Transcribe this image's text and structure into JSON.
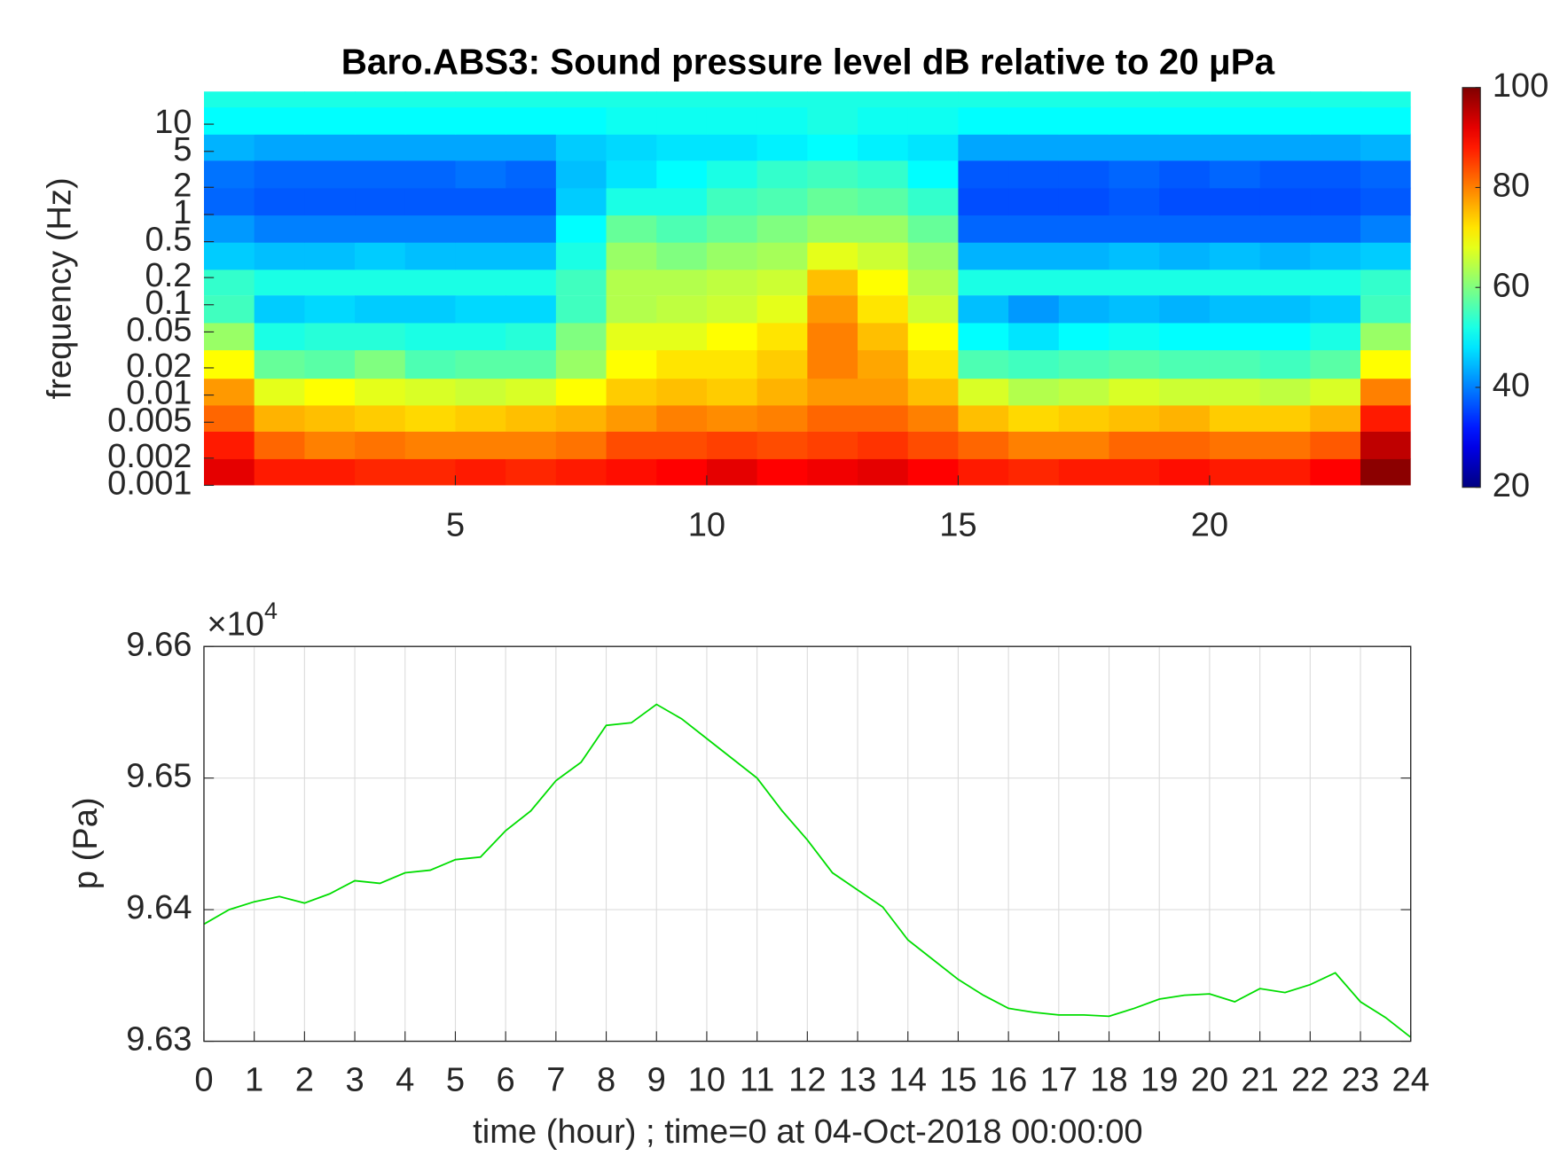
{
  "chart_data": [
    {
      "type": "heatmap",
      "title": "Baro.ABS3: Sound pressure level dB relative to 20 μPa",
      "y_label": "frequency (Hz)",
      "x": [
        0.5,
        1.5,
        2.5,
        3.5,
        4.5,
        5.5,
        6.5,
        7.5,
        8.5,
        9.5,
        10.5,
        11.5,
        12.5,
        13.5,
        14.5,
        15.5,
        16.5,
        17.5,
        18.5,
        19.5,
        20.5,
        21.5,
        22.5,
        23.5
      ],
      "y": [
        0.0014,
        0.0028,
        0.0056,
        0.011,
        0.022,
        0.045,
        0.09,
        0.18,
        0.35,
        0.7,
        1.4,
        2.8,
        5.6,
        11,
        22
      ],
      "values": [
        [
          92,
          88,
          88,
          87,
          87,
          88,
          87,
          88,
          89,
          90,
          92,
          90,
          91,
          92,
          90,
          88,
          87,
          88,
          88,
          89,
          88,
          88,
          90,
          99
        ],
        [
          88,
          82,
          80,
          81,
          80,
          80,
          80,
          81,
          84,
          84,
          85,
          84,
          85,
          86,
          84,
          82,
          80,
          80,
          82,
          82,
          81,
          81,
          83,
          95
        ],
        [
          82,
          76,
          75,
          74,
          73,
          74,
          75,
          76,
          78,
          80,
          79,
          80,
          82,
          82,
          80,
          75,
          73,
          74,
          75,
          76,
          74,
          74,
          76,
          88
        ],
        [
          78,
          68,
          70,
          68,
          67,
          66,
          67,
          70,
          74,
          75,
          74,
          76,
          78,
          78,
          75,
          67,
          64,
          65,
          67,
          66,
          66,
          65,
          67,
          80
        ],
        [
          70,
          58,
          57,
          60,
          56,
          57,
          57,
          62,
          70,
          72,
          72,
          74,
          80,
          77,
          72,
          56,
          55,
          56,
          57,
          56,
          56,
          55,
          57,
          70
        ],
        [
          62,
          52,
          53,
          53,
          52,
          52,
          53,
          60,
          68,
          68,
          70,
          72,
          80,
          75,
          70,
          50,
          48,
          50,
          51,
          50,
          50,
          50,
          52,
          62
        ],
        [
          55,
          46,
          47,
          46,
          46,
          47,
          47,
          55,
          64,
          65,
          66,
          68,
          78,
          72,
          66,
          45,
          42,
          44,
          45,
          44,
          45,
          45,
          46,
          55
        ],
        [
          54,
          52,
          52,
          52,
          52,
          52,
          52,
          55,
          64,
          64,
          65,
          66,
          75,
          70,
          64,
          52,
          52,
          52,
          52,
          52,
          52,
          52,
          52,
          54
        ],
        [
          46,
          45,
          45,
          46,
          45,
          45,
          45,
          52,
          62,
          60,
          62,
          63,
          68,
          66,
          62,
          44,
          44,
          44,
          45,
          44,
          45,
          44,
          45,
          46
        ],
        [
          42,
          40,
          40,
          40,
          40,
          40,
          40,
          50,
          58,
          56,
          58,
          60,
          62,
          62,
          58,
          38,
          38,
          38,
          38,
          38,
          38,
          38,
          38,
          40
        ],
        [
          38,
          37,
          37,
          37,
          37,
          37,
          37,
          46,
          52,
          52,
          55,
          56,
          58,
          57,
          54,
          36,
          36,
          36,
          37,
          36,
          36,
          36,
          36,
          37
        ],
        [
          39,
          38,
          38,
          38,
          38,
          39,
          38,
          45,
          48,
          50,
          52,
          54,
          55,
          54,
          50,
          37,
          37,
          37,
          38,
          37,
          38,
          37,
          37,
          38
        ],
        [
          44,
          43,
          43,
          43,
          43,
          43,
          43,
          46,
          47,
          48,
          48,
          49,
          50,
          49,
          48,
          43,
          43,
          43,
          43,
          43,
          43,
          43,
          43,
          44
        ],
        [
          50,
          50,
          50,
          50,
          50,
          50,
          50,
          50,
          51,
          51,
          51,
          51,
          52,
          51,
          51,
          50,
          50,
          50,
          50,
          50,
          50,
          50,
          50,
          50
        ],
        [
          52,
          52,
          52,
          52,
          52,
          52,
          52,
          52,
          52,
          52,
          52,
          52,
          52,
          52,
          52,
          52,
          52,
          52,
          52,
          52,
          52,
          52,
          52,
          52
        ]
      ],
      "xlim": [
        0,
        24
      ],
      "xticks": [
        5,
        10,
        15,
        20
      ],
      "ylim": [
        0.001,
        23
      ],
      "yscale": "log",
      "yticks": [
        0.001,
        0.002,
        0.005,
        0.01,
        0.02,
        0.05,
        0.1,
        0.2,
        0.5,
        1,
        2,
        5,
        10
      ],
      "colormap": "jet",
      "clim": [
        20,
        100
      ],
      "colorbar_ticks": [
        20,
        40,
        60,
        80,
        100
      ]
    },
    {
      "type": "line",
      "x_label": "time (hour) ; time=0 at 04-Oct-2018 00:00:00",
      "y_label": "p (Pa)",
      "y_exponent_base": "×10",
      "y_exponent": "4",
      "x": [
        0,
        0.5,
        1,
        1.5,
        2,
        2.5,
        3,
        3.5,
        4,
        4.5,
        5,
        5.5,
        6,
        6.5,
        7,
        7.5,
        8,
        8.5,
        9,
        9.5,
        10,
        10.5,
        11,
        11.5,
        12,
        12.5,
        13,
        13.5,
        14,
        14.5,
        15,
        15.5,
        16,
        16.5,
        17,
        17.5,
        18,
        18.5,
        19,
        19.5,
        20,
        20.5,
        21,
        21.5,
        22,
        22.5,
        23,
        23.5,
        24
      ],
      "values": [
        96389,
        96400,
        96406,
        96410,
        96405,
        96412,
        96422,
        96420,
        96428,
        96430,
        96438,
        96440,
        96460,
        96475,
        96498,
        96512,
        96540,
        96542,
        96556,
        96545,
        96530,
        96515,
        96500,
        96475,
        96453,
        96428,
        96415,
        96402,
        96377,
        96362,
        96347,
        96335,
        96325,
        96322,
        96320,
        96320,
        96319,
        96325,
        96332,
        96335,
        96336,
        96330,
        96340,
        96337,
        96343,
        96352,
        96330,
        96318,
        96303
      ],
      "color": "#00dd00",
      "xlim": [
        0,
        24
      ],
      "xticks": [
        0,
        1,
        2,
        3,
        4,
        5,
        6,
        7,
        8,
        9,
        10,
        11,
        12,
        13,
        14,
        15,
        16,
        17,
        18,
        19,
        20,
        21,
        22,
        23,
        24
      ],
      "ylim": [
        96300,
        96600
      ],
      "yticks": [
        {
          "value": 96300,
          "label": "9.63"
        },
        {
          "value": 96400,
          "label": "9.64"
        },
        {
          "value": 96500,
          "label": "9.65"
        },
        {
          "value": 96600,
          "label": "9.66"
        }
      ],
      "grid": true
    }
  ]
}
